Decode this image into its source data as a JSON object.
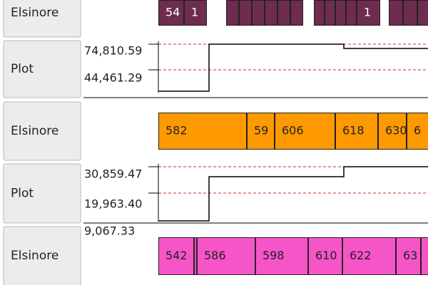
{
  "tracks": [
    {
      "label": "Elsinore",
      "blocks": [
        "54",
        "1",
        "1"
      ]
    },
    {
      "label": "Plot",
      "ticks": [
        "74,810.59",
        "44,461.29"
      ]
    },
    {
      "label": "Elsinore",
      "blocks": [
        "582",
        "59",
        "606",
        "618",
        "630",
        "6"
      ]
    },
    {
      "label": "Plot",
      "ticks": [
        "30,859.47",
        "19,963.40",
        "9,067.33"
      ]
    },
    {
      "label": "Elsinore",
      "blocks": [
        "542",
        "586",
        "598",
        "610",
        "622",
        "63"
      ]
    }
  ]
}
